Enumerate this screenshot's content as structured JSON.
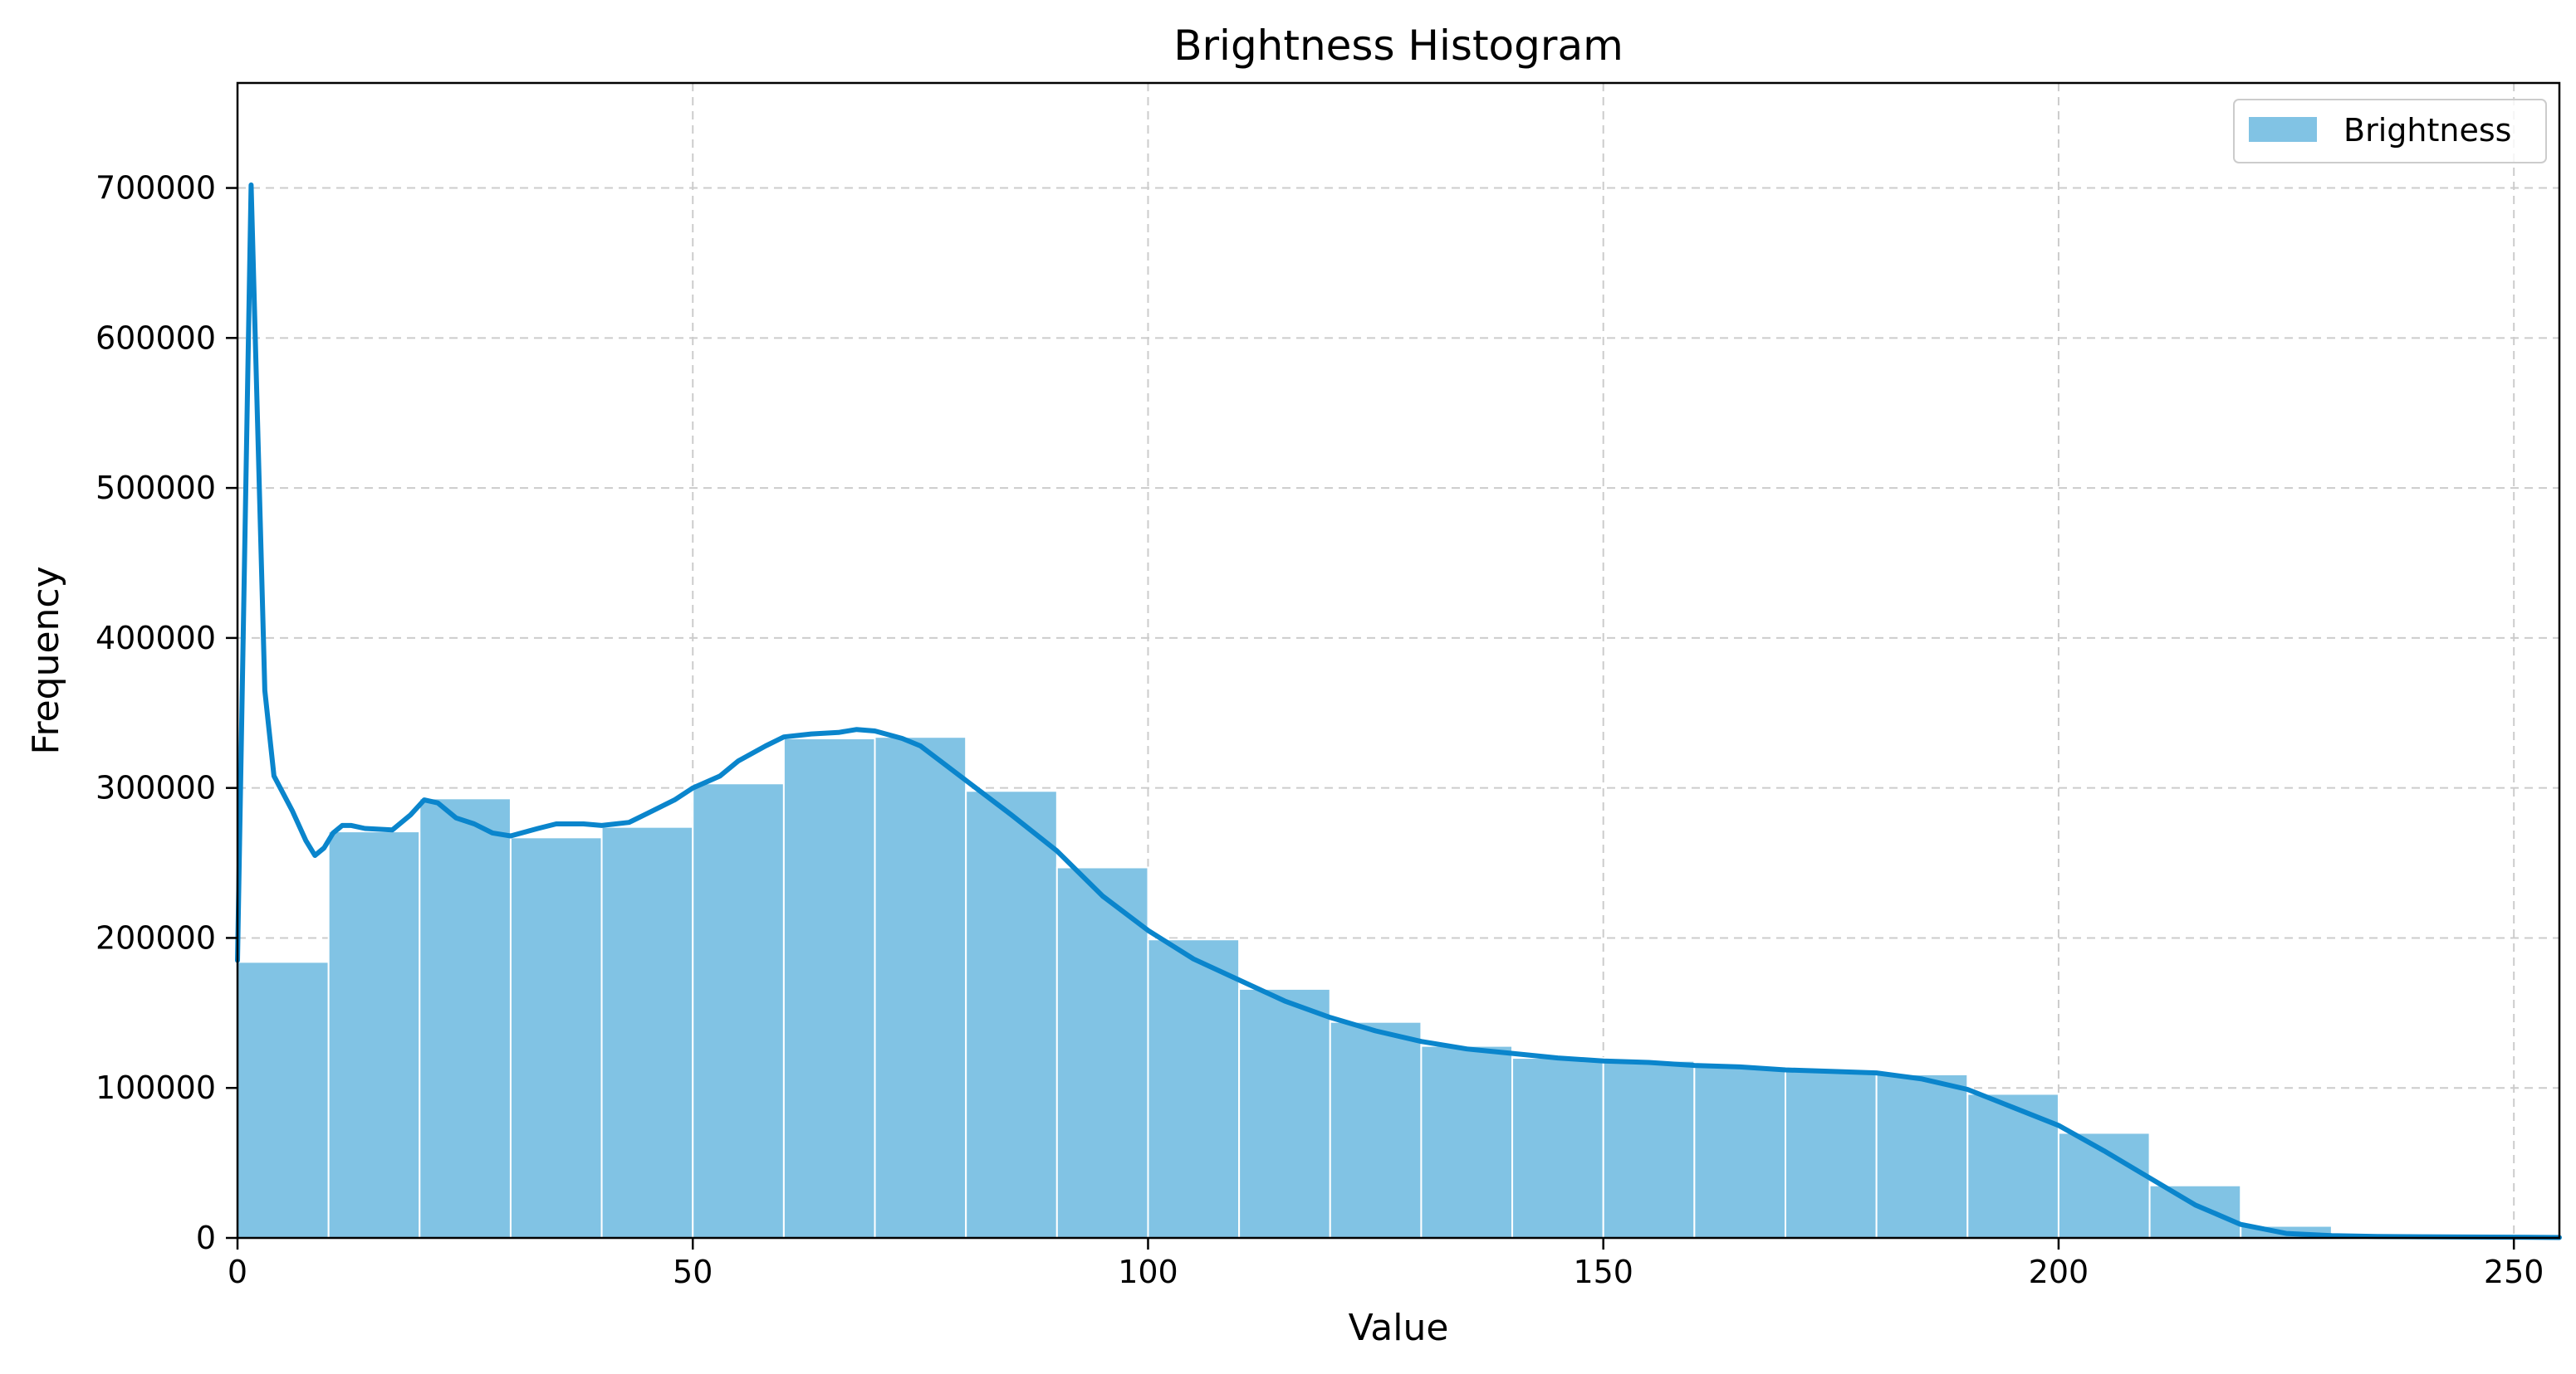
{
  "chart_data": {
    "type": "bar",
    "title": "Brightness Histogram",
    "xlabel": "Value",
    "ylabel": "Frequency",
    "xlim": [
      0,
      255
    ],
    "ylim": [
      0,
      770000
    ],
    "grid": true,
    "grid_style": "dashed",
    "legend_position": "upper right",
    "x_ticks": [
      0,
      50,
      100,
      150,
      200,
      250
    ],
    "y_ticks": [
      0,
      100000,
      200000,
      300000,
      400000,
      500000,
      600000,
      700000
    ],
    "bin_width": 10,
    "bin_edges": [
      0,
      10,
      20,
      30,
      40,
      50,
      60,
      70,
      80,
      90,
      100,
      110,
      120,
      130,
      140,
      150,
      160,
      170,
      180,
      190,
      200,
      210,
      220,
      230,
      240,
      250,
      255
    ],
    "series": [
      {
        "name": "Brightness",
        "kind": "histogram",
        "color": "#81c3e4",
        "values": [
          184000,
          271000,
          293000,
          267000,
          274000,
          303000,
          333000,
          334000,
          298000,
          247000,
          199000,
          166000,
          144000,
          128000,
          120000,
          118000,
          114000,
          111000,
          109000,
          96000,
          70000,
          35000,
          8000,
          1000,
          500,
          200
        ]
      },
      {
        "kind": "kde",
        "color": "#0a85cc",
        "x": [
          0,
          1.5,
          3,
          4,
          6,
          7.5,
          8.5,
          9.5,
          10.5,
          11.5,
          12.5,
          14,
          17,
          19,
          20.5,
          22,
          24,
          26,
          28,
          30,
          33,
          35,
          38,
          40,
          43,
          45,
          48,
          50,
          53,
          55,
          58,
          60,
          63,
          66,
          68,
          70,
          73,
          75,
          80,
          85,
          90,
          95,
          100,
          105,
          110,
          115,
          120,
          125,
          130,
          135,
          140,
          145,
          150,
          155,
          160,
          165,
          170,
          175,
          180,
          185,
          190,
          195,
          200,
          205,
          210,
          215,
          220,
          225,
          230,
          235,
          240,
          245,
          250,
          255
        ],
        "y": [
          185000,
          702000,
          365000,
          308000,
          285000,
          265000,
          255000,
          260000,
          270000,
          275000,
          275000,
          273000,
          272000,
          282000,
          292000,
          290000,
          280000,
          276000,
          270000,
          268000,
          273000,
          276000,
          276000,
          275000,
          277000,
          283000,
          292000,
          300000,
          308000,
          318000,
          328000,
          334000,
          336000,
          337000,
          339000,
          338000,
          333000,
          328000,
          305000,
          282000,
          258000,
          228000,
          205000,
          186000,
          172000,
          158000,
          147000,
          138000,
          131000,
          126000,
          123000,
          120000,
          118000,
          117000,
          115000,
          114000,
          112000,
          111000,
          110000,
          106000,
          99000,
          87000,
          75000,
          58000,
          40000,
          22000,
          9000,
          3000,
          1500,
          1000,
          800,
          600,
          500,
          300
        ]
      }
    ]
  }
}
